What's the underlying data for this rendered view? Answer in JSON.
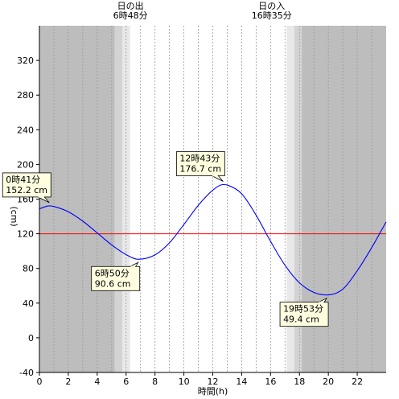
{
  "sun": {
    "sunrise": {
      "label": "日の出",
      "time": "6時48分",
      "hour": 6.8
    },
    "sunset": {
      "label": "日の入",
      "time": "16時35分",
      "hour": 16.583
    },
    "twilight": [
      {
        "from": 5.2,
        "to": 5.73,
        "level": "light"
      },
      {
        "from": 5.73,
        "to": 6.27,
        "level": "lighter"
      },
      {
        "from": 17.12,
        "to": 17.65,
        "level": "lighter"
      },
      {
        "from": 17.65,
        "to": 18.17,
        "level": "light"
      }
    ]
  },
  "colors": {
    "night": "#bdbdbd",
    "twilight_light": "#d3d3d3",
    "twilight_lighter": "#e8e8e8",
    "day": "#ffffff",
    "tide_line": "#0000ff",
    "reference_line": "#ff0000",
    "callout_bg": "#ffffe0"
  },
  "chart_data": {
    "type": "line",
    "title": "",
    "xlabel": "時間(h)",
    "ylabel": "(cm)",
    "xlim": [
      0,
      24
    ],
    "ylim": [
      -40,
      360
    ],
    "x_ticks": [
      "0",
      "2",
      "4",
      "6",
      "8",
      "10",
      "12",
      "14",
      "16",
      "18",
      "20",
      "22"
    ],
    "y_ticks": [
      "-40",
      "0",
      "40",
      "80",
      "120",
      "160",
      "200",
      "240",
      "280",
      "320"
    ],
    "reference_value": 120,
    "grid": "vertical-dashed-hourly",
    "series": [
      {
        "x": [
          0,
          0.683,
          1,
          2,
          3,
          4,
          5,
          6,
          6.833,
          8,
          9,
          10,
          11,
          12,
          12.717,
          13,
          14,
          15,
          16,
          17,
          18,
          19,
          19.883,
          21,
          22,
          23,
          24
        ],
        "y": [
          148.8,
          152.2,
          151.5,
          145.4,
          134.6,
          121.0,
          107.2,
          96.0,
          90.6,
          95.6,
          109.5,
          130.7,
          152.8,
          170.3,
          176.7,
          176.2,
          166.2,
          141.4,
          111.3,
          83.7,
          63.4,
          52.3,
          49.4,
          56.1,
          77.3,
          104.0,
          133.7
        ]
      }
    ],
    "annotations": [
      {
        "time": "0時41分",
        "value": "152.2 cm",
        "x": 0.683,
        "y": 152.2,
        "placement": "above-left"
      },
      {
        "time": "6時50分",
        "value": "90.6 cm",
        "x": 6.833,
        "y": 90.6,
        "placement": "below-left"
      },
      {
        "time": "12時43分",
        "value": "176.7 cm",
        "x": 12.717,
        "y": 176.7,
        "placement": "above-left"
      },
      {
        "time": "19時53分",
        "value": "49.4 cm",
        "x": 19.883,
        "y": 49.4,
        "placement": "below-left"
      }
    ]
  }
}
